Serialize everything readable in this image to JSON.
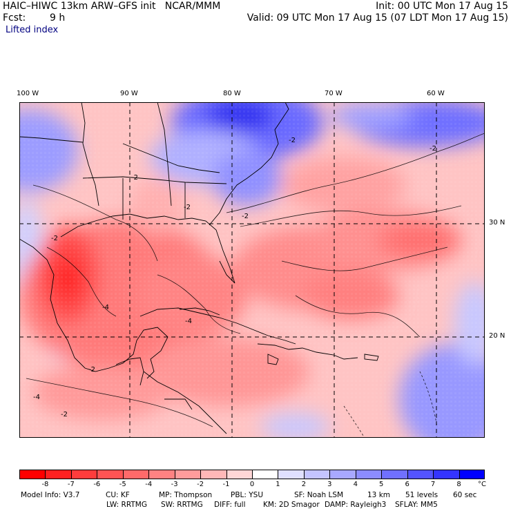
{
  "header": {
    "title": "HAIC–HIWC 13km ARW–GFS init   NCAR/MMM",
    "init": "Init: 00 UTC Mon 17 Aug 15",
    "fcst_label": "Fcst:",
    "fcst_value": "9 h",
    "valid": "Valid: 09 UTC Mon 17 Aug 15 (07 LDT Mon 17 Aug 15)",
    "field": "Lifted index"
  },
  "map": {
    "lon_labels": [
      "100 W",
      "90 W",
      "80 W",
      "70 W",
      "60 W"
    ],
    "lat_labels": [
      "30 N",
      "20 N"
    ],
    "contour_labels": [
      "-2",
      "-2",
      "-2",
      "-2",
      "-2",
      "-2",
      "-4",
      "-4",
      "-4",
      "-2",
      "-2"
    ]
  },
  "colorbar": {
    "ticks": [
      "-8",
      "-7",
      "-6",
      "-5",
      "-4",
      "-3",
      "-2",
      "-1",
      "0",
      "1",
      "2",
      "3",
      "4",
      "5",
      "6",
      "7",
      "8"
    ],
    "unit": "°C",
    "colors": [
      "#ff0000",
      "#ff2020",
      "#ff3c3c",
      "#ff5454",
      "#ff6a6a",
      "#ff8282",
      "#ff9c9c",
      "#ffb8b8",
      "#ffd6d6",
      "#ffffff",
      "#e0e0ff",
      "#c4c4ff",
      "#a8a8ff",
      "#8c8cff",
      "#7070ff",
      "#5454ff",
      "#3434ff",
      "#0000ff"
    ]
  },
  "footer": {
    "line1": [
      "Model Info: V3.7",
      "CU: KF",
      "MP: Thompson",
      "PBL: YSU",
      "SF: Noah LSM",
      "13 km",
      "51 levels",
      "60 sec"
    ],
    "line2": [
      "LW: RRTMG",
      "SW: RRTMG",
      "DIFF: full",
      "KM: 2D Smagor",
      "DAMP: Rayleigh3",
      "SFLAY: MM5"
    ]
  }
}
